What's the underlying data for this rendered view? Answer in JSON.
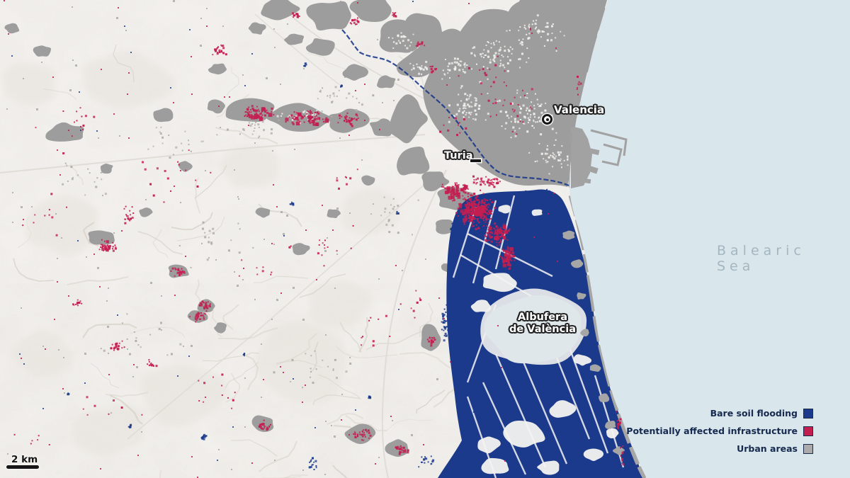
{
  "map": {
    "labels": {
      "city": "Valencia",
      "river": "Turia",
      "lagoon_line1": "Albufera",
      "lagoon_line2": "de València",
      "sea": "Balearic Sea"
    },
    "scale_bar": {
      "label": "2 km"
    },
    "legend": {
      "items": [
        {
          "label": "Bare soil flooding",
          "color": "#1c3a8c"
        },
        {
          "label": "Potentially affected infrastructure",
          "color": "#c41e50"
        },
        {
          "label": "Urban areas",
          "color": "#ababab"
        }
      ]
    },
    "colors": {
      "sea": "#d9e6ec",
      "land": "#f3f1ee",
      "flood": "#1c3a8c",
      "infrastructure": "#c41e50",
      "urban": "#9d9d9d",
      "lagoon": "#dfe7ea",
      "legend_text": "#16294f",
      "sea_label_text": "#a4b6c0"
    }
  }
}
